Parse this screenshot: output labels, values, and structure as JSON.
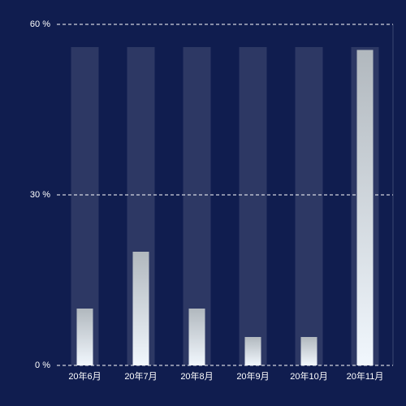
{
  "chart_data": {
    "type": "bar",
    "categories": [
      "20年6月",
      "20年7月",
      "20年8月",
      "20年9月",
      "20年10月",
      "20年11月"
    ],
    "values": [
      10,
      20,
      10,
      5,
      5,
      55.5
    ],
    "gradient": [
      "#b1b8be",
      "#f1f7fd"
    ],
    "ylim": [
      0,
      60
    ],
    "yticks": [
      {
        "value": 0,
        "label": "0 %"
      },
      {
        "value": 30,
        "label": "30 %"
      },
      {
        "value": 60,
        "label": "60 %"
      }
    ],
    "grid": true
  }
}
